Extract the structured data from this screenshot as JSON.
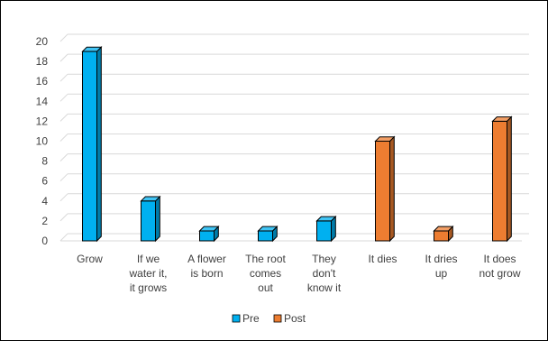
{
  "chart_data": {
    "type": "bar",
    "bar_style": "3d",
    "categories": [
      [
        "Grow"
      ],
      [
        "If we",
        "water it,",
        "it grows"
      ],
      [
        "A flower",
        "is born"
      ],
      [
        "The root",
        "comes",
        "out"
      ],
      [
        "They",
        "don't",
        "know it"
      ],
      [
        "It dies"
      ],
      [
        "It dries",
        "up"
      ],
      [
        "It does",
        "not grow"
      ]
    ],
    "series": [
      {
        "name": "Pre",
        "color": "#00B0F0",
        "values": [
          19,
          4,
          1,
          1,
          2,
          null,
          null,
          null
        ]
      },
      {
        "name": "Post",
        "color": "#ED7D31",
        "values": [
          null,
          null,
          null,
          null,
          null,
          10,
          1,
          12
        ]
      }
    ],
    "yticks": [
      "0",
      "2",
      "4",
      "6",
      "8",
      "10",
      "12",
      "14",
      "16",
      "18",
      "20"
    ],
    "ylim": [
      0,
      20
    ],
    "grid": true,
    "legend_position": "bottom"
  }
}
